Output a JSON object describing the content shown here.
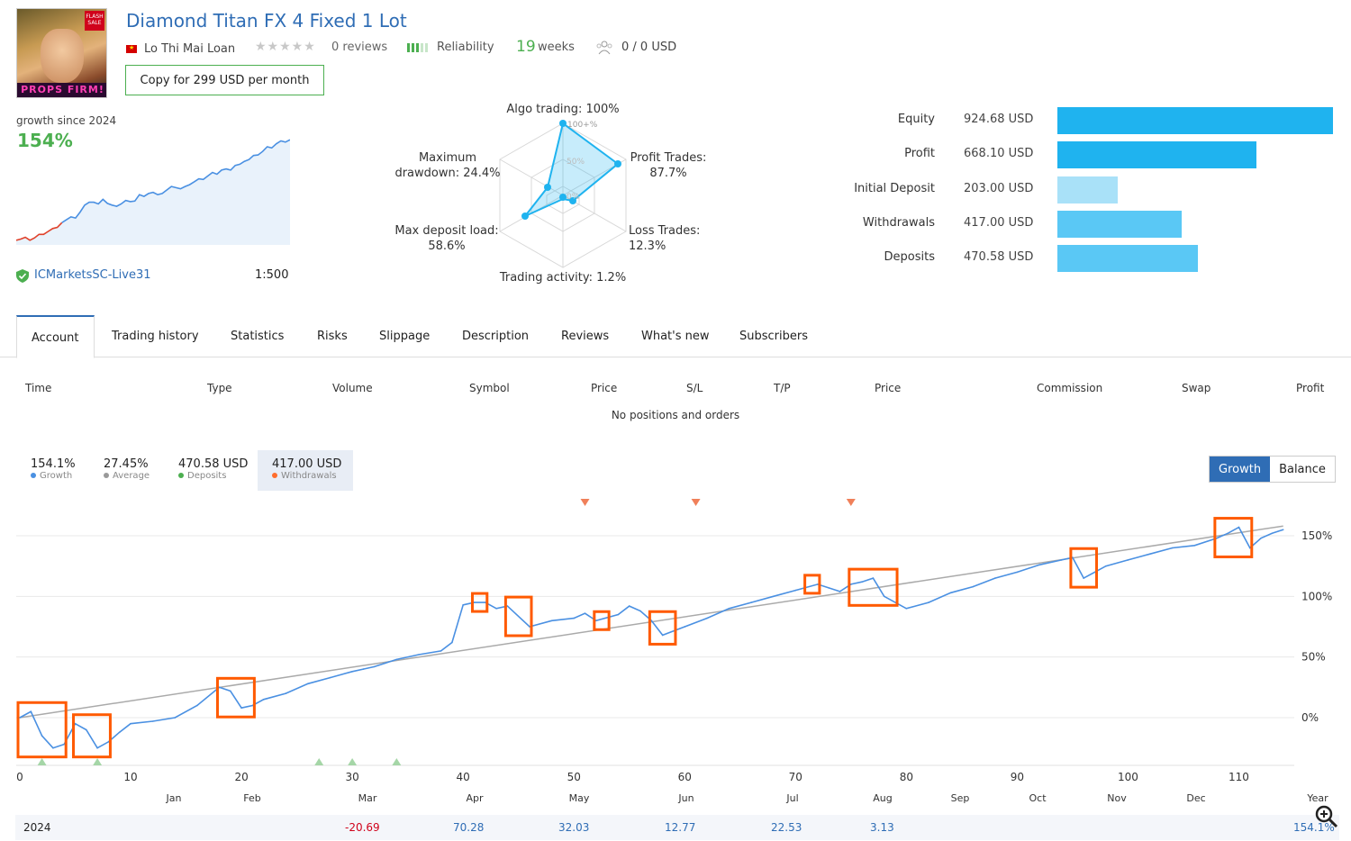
{
  "header": {
    "title": "Diamond Titan FX 4 Fixed 1 Lot",
    "author": "Lo Thi Mai Loan",
    "reviews": "0 reviews",
    "reliability_label": "Reliability",
    "weeks_num": "19",
    "weeks_label": "weeks",
    "subscribers": "0 / 0 USD",
    "copy_button": "Copy for 299 USD per month",
    "avatar_sale": "FLASH SALE",
    "avatar_badge": "PROPS FIRM!"
  },
  "summary": {
    "growth_since": "growth since 2024",
    "growth_pct": "154%",
    "broker": "ICMarketsSC-Live31",
    "leverage": "1:500"
  },
  "radar": {
    "algo": "Algo trading: 100%",
    "profit_trades_1": "Profit Trades:",
    "profit_trades_2": "87.7%",
    "loss_trades": "Loss Trades: 12.3%",
    "activity": "Trading activity: 1.2%",
    "deposit_load_1": "Max deposit load:",
    "deposit_load_2": "58.6%",
    "drawdown_1": "Maximum",
    "drawdown_2": "drawdown: 24.4%",
    "ring_100": "100+%",
    "ring_50": "50%",
    "ring_0": "0%"
  },
  "balance_bars": [
    {
      "label": "Equity",
      "value": "924.68 USD",
      "amount": 924.68,
      "color": "#1fb3ef"
    },
    {
      "label": "Profit",
      "value": "668.10 USD",
      "amount": 668.1,
      "color": "#1fb3ef"
    },
    {
      "label": "Initial Deposit",
      "value": "203.00 USD",
      "amount": 203.0,
      "color": "#a9e1f8"
    },
    {
      "label": "Withdrawals",
      "value": "417.00 USD",
      "amount": 417.0,
      "color": "#5ac8f5"
    },
    {
      "label": "Deposits",
      "value": "470.58 USD",
      "amount": 470.58,
      "color": "#5ac8f5"
    }
  ],
  "tabs": [
    "Account",
    "Trading history",
    "Statistics",
    "Risks",
    "Slippage",
    "Description",
    "Reviews",
    "What's new",
    "Subscribers"
  ],
  "table": {
    "columns": [
      "Time",
      "Type",
      "Volume",
      "Symbol",
      "Price",
      "S/L",
      "T/P",
      "Price",
      "Commission",
      "Swap",
      "Profit"
    ],
    "empty": "No positions and orders"
  },
  "stats": [
    {
      "value": "154.1%",
      "label": "Growth",
      "color": "#4a90e2"
    },
    {
      "value": "27.45%",
      "label": "Average",
      "color": "#999999"
    },
    {
      "value": "470.58 USD",
      "label": "Deposits",
      "color": "#4caf50"
    },
    {
      "value": "417.00 USD",
      "label": "Withdrawals",
      "color": "#ff6d2d"
    }
  ],
  "toggle": {
    "growth": "Growth",
    "balance": "Balance"
  },
  "colors": {
    "accent": "#2f6db5",
    "growth_line": "#4a90e2",
    "trend_line": "#aaaaaa",
    "highlight": "#ff5a00",
    "positive": "#4caf50"
  },
  "chart_data": {
    "type": "line",
    "title": "",
    "xlabel": "",
    "ylabel": "",
    "xlim": [
      0,
      115
    ],
    "ylim": [
      -20,
      160
    ],
    "y_ticks": [
      0,
      50,
      100,
      150
    ],
    "y_tick_labels": [
      "0%",
      "50%",
      "100%",
      "150%"
    ],
    "x_ticks": [
      0,
      10,
      20,
      30,
      40,
      50,
      60,
      70,
      80,
      90,
      100,
      110
    ],
    "months": [
      "Jan",
      "Feb",
      "Mar",
      "Apr",
      "May",
      "Jun",
      "Jul",
      "Aug",
      "Sep",
      "Oct",
      "Nov",
      "Dec",
      "Year"
    ],
    "series": [
      {
        "name": "Growth",
        "x": [
          0,
          1,
          2,
          3,
          4,
          5,
          6,
          7,
          8,
          9,
          10,
          12,
          14,
          16,
          18,
          19,
          20,
          21,
          22,
          24,
          26,
          28,
          30,
          31,
          32,
          33,
          34,
          36,
          38,
          39,
          40,
          41,
          42,
          43,
          44,
          46,
          48,
          50,
          51,
          52,
          54,
          55,
          56,
          57,
          58,
          60,
          62,
          64,
          66,
          68,
          70,
          72,
          73,
          74,
          75,
          76,
          77,
          78,
          80,
          82,
          84,
          86,
          88,
          90,
          92,
          94,
          95,
          96,
          97,
          98,
          100,
          102,
          104,
          106,
          108,
          109,
          110,
          111,
          112,
          113,
          114
        ],
        "y": [
          0,
          5,
          -15,
          -25,
          -22,
          -5,
          -10,
          -25,
          -20,
          -12,
          -5,
          -3,
          0,
          10,
          25,
          22,
          8,
          10,
          15,
          20,
          28,
          33,
          38,
          40,
          42,
          45,
          48,
          52,
          55,
          62,
          93,
          95,
          95,
          90,
          92,
          75,
          80,
          82,
          86,
          80,
          85,
          92,
          88,
          80,
          68,
          75,
          82,
          90,
          95,
          100,
          105,
          110,
          107,
          104,
          110,
          112,
          115,
          100,
          90,
          95,
          103,
          108,
          115,
          120,
          126,
          130,
          132,
          115,
          120,
          125,
          130,
          135,
          140,
          142,
          148,
          152,
          157,
          140,
          148,
          152,
          155
        ]
      },
      {
        "name": "Trend",
        "x": [
          0,
          114
        ],
        "y": [
          0,
          158
        ]
      }
    ],
    "highlight_boxes": [
      [
        0,
        4
      ],
      [
        5,
        8
      ],
      [
        18,
        21
      ],
      [
        41,
        42
      ],
      [
        44,
        46
      ],
      [
        52,
        53
      ],
      [
        57,
        59
      ],
      [
        71,
        72
      ],
      [
        75,
        79
      ],
      [
        95,
        97
      ],
      [
        108,
        111
      ]
    ],
    "withdrawal_markers_x": [
      51,
      61,
      75
    ],
    "deposit_markers_x": [
      2,
      7,
      27,
      30,
      34
    ],
    "year_row": {
      "year": "2024",
      "values": [
        "-20.69",
        "70.28",
        "32.03",
        "12.77",
        "22.53",
        "3.13"
      ],
      "total": "154.1%"
    }
  },
  "mini_chart": {
    "x": [
      0,
      5,
      10,
      15,
      20,
      25,
      30,
      35,
      40,
      45,
      50,
      55,
      60,
      65,
      70,
      75,
      80,
      85,
      90,
      95,
      100,
      105,
      110,
      115,
      120,
      125,
      130,
      135,
      140,
      145,
      150,
      155,
      160,
      165,
      170,
      175,
      180,
      185,
      190,
      195,
      200,
      205,
      210,
      215,
      220,
      225,
      230,
      235,
      240,
      245,
      250,
      255,
      260,
      265,
      270,
      275,
      280,
      285,
      290,
      295,
      300
    ],
    "y": [
      -20,
      -18,
      -15,
      -20,
      -16,
      -10,
      -10,
      -5,
      0,
      2,
      10,
      15,
      20,
      18,
      28,
      40,
      45,
      45,
      42,
      50,
      43,
      40,
      38,
      42,
      48,
      46,
      47,
      58,
      55,
      60,
      62,
      58,
      60,
      66,
      72,
      70,
      68,
      72,
      75,
      80,
      85,
      84,
      90,
      96,
      93,
      100,
      102,
      100,
      108,
      110,
      115,
      118,
      125,
      126,
      132,
      140,
      138,
      145,
      150,
      148,
      152
    ]
  }
}
